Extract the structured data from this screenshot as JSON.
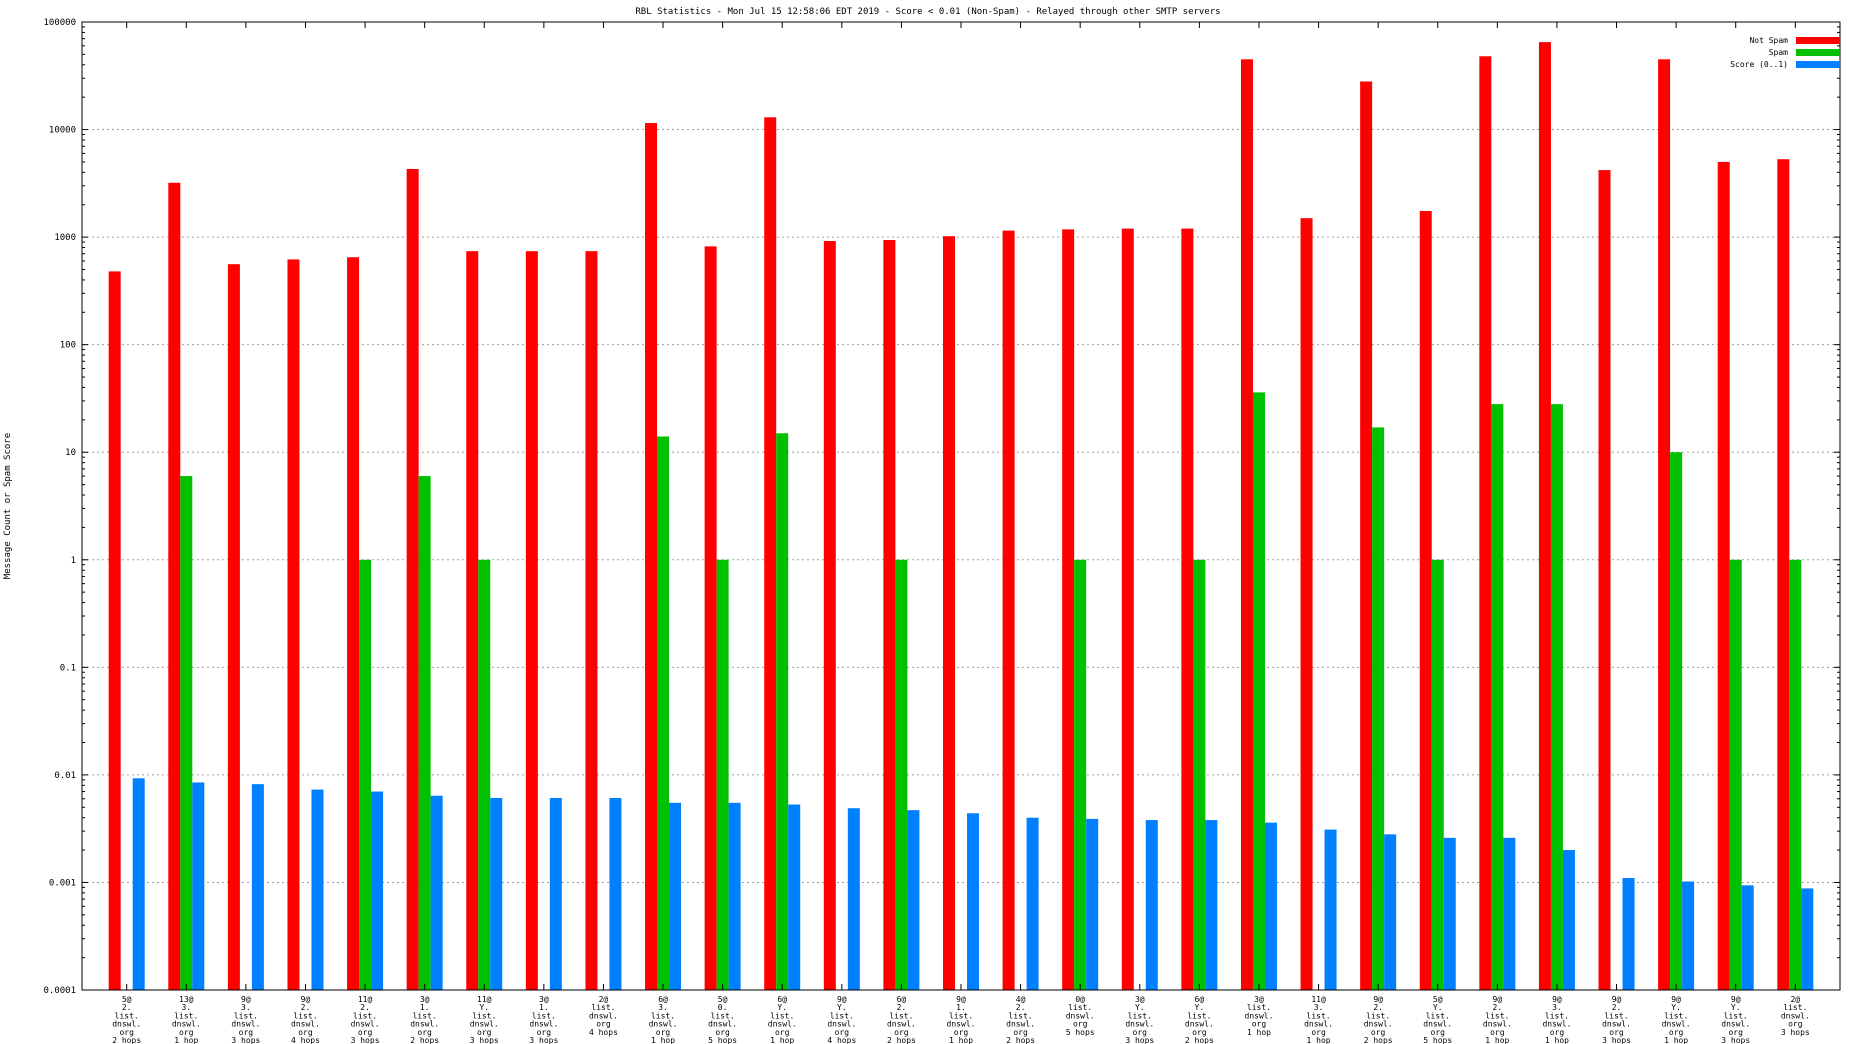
{
  "chart_data": {
    "type": "bar",
    "title": "RBL Statistics - Mon Jul 15 12:58:06 EDT 2019 - Score < 0.01 (Non-Spam) - Relayed through other SMTP servers",
    "ylabel": "Message Count or Spam Score",
    "xlabel": "",
    "yscale": "log",
    "ylim": [
      0.0001,
      100000
    ],
    "yticks": [
      "100000",
      "10000",
      "1000",
      "100",
      "10",
      "1",
      "0.1",
      "0.01",
      "0.001",
      "0.0001"
    ],
    "grid": true,
    "legend_position": "top-right",
    "categories": [
      [
        "5@",
        "2.",
        "list.",
        "dnswl.",
        "org",
        "2 hops"
      ],
      [
        "13@",
        "3.",
        "list.",
        "dnswl.",
        "org",
        "1 hop"
      ],
      [
        "9@",
        "3.",
        "list.",
        "dnswl.",
        "org",
        "3 hops"
      ],
      [
        "9@",
        "2.",
        "list.",
        "dnswl.",
        "org",
        "4 hops"
      ],
      [
        "11@",
        "2.",
        "list.",
        "dnswl.",
        "org",
        "3 hops"
      ],
      [
        "3@",
        "1.",
        "list.",
        "dnswl.",
        "org",
        "2 hops"
      ],
      [
        "11@",
        "Y.",
        "list.",
        "dnswl.",
        "org",
        "3 hops"
      ],
      [
        "3@",
        "1.",
        "list.",
        "dnswl.",
        "org",
        "3 hops"
      ],
      [
        "2@",
        "list.",
        "dnswl.",
        "org",
        "4 hops"
      ],
      [
        "6@",
        "3.",
        "list.",
        "dnswl.",
        "org",
        "1 hop"
      ],
      [
        "5@",
        "0.",
        "list.",
        "dnswl.",
        "org",
        "5 hops"
      ],
      [
        "6@",
        "Y.",
        "list.",
        "dnswl.",
        "org",
        "1 hop"
      ],
      [
        "9@",
        "Y.",
        "list.",
        "dnswl.",
        "org",
        "4 hops"
      ],
      [
        "6@",
        "2.",
        "list.",
        "dnswl.",
        "org",
        "2 hops"
      ],
      [
        "9@",
        "1.",
        "list.",
        "dnswl.",
        "org",
        "1 hop"
      ],
      [
        "4@",
        "2.",
        "list.",
        "dnswl.",
        "org",
        "2 hops"
      ],
      [
        "0@",
        "list.",
        "dnswl.",
        "org",
        "5 hops"
      ],
      [
        "3@",
        "Y.",
        "list.",
        "dnswl.",
        "org",
        "3 hops"
      ],
      [
        "6@",
        "Y.",
        "list.",
        "dnswl.",
        "org",
        "2 hops"
      ],
      [
        "3@",
        "list.",
        "dnswl.",
        "org",
        "1 hop"
      ],
      [
        "11@",
        "3.",
        "list.",
        "dnswl.",
        "org",
        "1 hop"
      ],
      [
        "9@",
        "2.",
        "list.",
        "dnswl.",
        "org",
        "2 hops"
      ],
      [
        "5@",
        "Y.",
        "list.",
        "dnswl.",
        "org",
        "5 hops"
      ],
      [
        "9@",
        "2.",
        "list.",
        "dnswl.",
        "org",
        "1 hop"
      ],
      [
        "9@",
        "3.",
        "list.",
        "dnswl.",
        "org",
        "1 hop"
      ],
      [
        "9@",
        "2.",
        "list.",
        "dnswl.",
        "org",
        "3 hops"
      ],
      [
        "9@",
        "Y.",
        "list.",
        "dnswl.",
        "org",
        "1 hop"
      ],
      [
        "9@",
        "Y.",
        "list.",
        "dnswl.",
        "org",
        "3 hops"
      ],
      [
        "2@",
        "list.",
        "dnswl.",
        "org",
        "3 hops"
      ]
    ],
    "series": [
      {
        "name": "Not Spam",
        "color": "#ff0000",
        "values": [
          480,
          3200,
          560,
          620,
          650,
          4300,
          740,
          740,
          740,
          11500,
          820,
          13000,
          920,
          940,
          1020,
          1150,
          1180,
          1200,
          1200,
          45000,
          1500,
          28000,
          1750,
          48000,
          65000,
          4200,
          45000,
          5000,
          5300
        ]
      },
      {
        "name": "Spam",
        "color": "#00c000",
        "values": [
          null,
          6,
          null,
          null,
          1,
          6,
          1,
          null,
          null,
          14,
          1,
          15,
          null,
          1,
          null,
          null,
          1,
          null,
          1,
          36,
          null,
          17,
          1,
          28,
          28,
          null,
          10,
          1,
          1
        ]
      },
      {
        "name": "Score (0..1)",
        "color": "#0080ff",
        "values": [
          0.0093,
          0.0085,
          0.0082,
          0.0073,
          0.007,
          0.0064,
          0.0061,
          0.0061,
          0.0061,
          0.0055,
          0.0055,
          0.0053,
          0.0049,
          0.0047,
          0.0044,
          0.004,
          0.0039,
          0.0038,
          0.0038,
          0.0036,
          0.0031,
          0.0028,
          0.0026,
          0.0026,
          0.002,
          0.0011,
          0.00102,
          0.00094,
          0.00088
        ]
      }
    ]
  }
}
